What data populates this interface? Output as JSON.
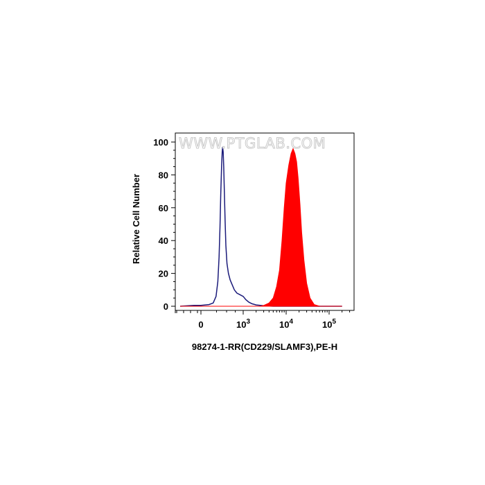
{
  "watermark": "WWW.PTGLAB.COM",
  "chart_data": {
    "type": "area",
    "xlabel": "98274-1-RR(CD229/SLAMF3),PE-H",
    "ylabel": "Relative Cell Number",
    "x_scale": "biexponential",
    "ylim": [
      0,
      100
    ],
    "y_ticks": [
      "0",
      "20",
      "40",
      "60",
      "80",
      "100"
    ],
    "x_ticks": [
      {
        "base": "0",
        "exp": "",
        "value": 0
      },
      {
        "base": "10",
        "exp": "3",
        "value": 1000
      },
      {
        "base": "10",
        "exp": "4",
        "value": 10000
      },
      {
        "base": "10",
        "exp": "5",
        "value": 100000
      }
    ],
    "grid": false,
    "series": [
      {
        "style": "outline",
        "color": "#1a1a7a",
        "points": [
          [
            -600,
            0
          ],
          [
            -200,
            0.5
          ],
          [
            0,
            0.5
          ],
          [
            100,
            1
          ],
          [
            180,
            2
          ],
          [
            240,
            6
          ],
          [
            280,
            15
          ],
          [
            310,
            30
          ],
          [
            330,
            48
          ],
          [
            350,
            68
          ],
          [
            370,
            85
          ],
          [
            385,
            94
          ],
          [
            395,
            97
          ],
          [
            410,
            94
          ],
          [
            425,
            85
          ],
          [
            440,
            70
          ],
          [
            460,
            52
          ],
          [
            480,
            37
          ],
          [
            510,
            26
          ],
          [
            550,
            20
          ],
          [
            600,
            16
          ],
          [
            660,
            13
          ],
          [
            720,
            10
          ],
          [
            800,
            8
          ],
          [
            900,
            7
          ],
          [
            1000,
            6
          ],
          [
            1150,
            4
          ],
          [
            1350,
            2.5
          ],
          [
            1600,
            1.5
          ],
          [
            2000,
            0.8
          ],
          [
            3000,
            0.3
          ],
          [
            5000,
            0
          ],
          [
            200000,
            0
          ]
        ]
      },
      {
        "style": "filled",
        "color": "#ff0000",
        "points": [
          [
            -600,
            0
          ],
          [
            2500,
            0
          ],
          [
            3000,
            0.5
          ],
          [
            4000,
            2
          ],
          [
            5000,
            5
          ],
          [
            6000,
            12
          ],
          [
            7000,
            22
          ],
          [
            8000,
            40
          ],
          [
            9000,
            60
          ],
          [
            10000,
            75
          ],
          [
            11500,
            86
          ],
          [
            13000,
            93
          ],
          [
            14500,
            96
          ],
          [
            16000,
            93
          ],
          [
            17500,
            88
          ],
          [
            19000,
            78
          ],
          [
            21000,
            62
          ],
          [
            23000,
            45
          ],
          [
            26000,
            28
          ],
          [
            30000,
            14
          ],
          [
            36000,
            5
          ],
          [
            45000,
            1
          ],
          [
            60000,
            0
          ],
          [
            200000,
            0
          ]
        ]
      }
    ]
  }
}
